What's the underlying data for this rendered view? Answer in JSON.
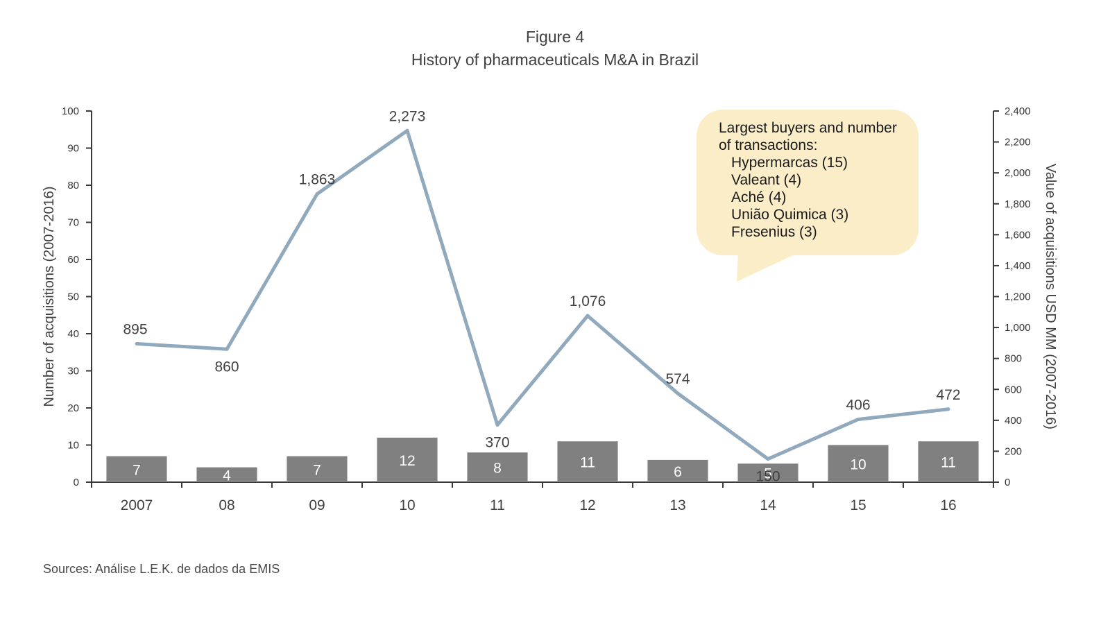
{
  "header": {
    "figure_label": "Figure 4",
    "title": "History of pharmaceuticals M&A in Brazil"
  },
  "callout": {
    "heading_line1": "Largest buyers and number",
    "heading_line2": "of transactions:",
    "buyers": [
      "Hypermarcas (15)",
      "Valeant (4)",
      "Aché  (4)",
      "União Quimica (3)",
      "Fresenius (3)"
    ]
  },
  "footer": {
    "source": "Sources: Análise  L.E.K. de dados da EMIS"
  },
  "chart_data": {
    "type": "bar",
    "categories": [
      "2007",
      "08",
      "09",
      "10",
      "11",
      "12",
      "13",
      "14",
      "15",
      "16"
    ],
    "series": [
      {
        "values": [
          7,
          4,
          7,
          12,
          8,
          11,
          6,
          5,
          10,
          11
        ],
        "axis": "left",
        "kind": "bar",
        "color": "#808080"
      },
      {
        "values": [
          895,
          860,
          1863,
          2273,
          370,
          1076,
          574,
          150,
          406,
          472
        ],
        "axis": "right",
        "kind": "line",
        "color": "#91a9bd"
      }
    ],
    "value_labels_line": [
      "895",
      "860",
      "1,863",
      "2,273",
      "370",
      "1,076",
      "574",
      "150",
      "406",
      "472"
    ],
    "ylabel": "Number of acquisitions (2007-2016)",
    "ylabel_right": "Value of acquisitions USD MM (2007-2016)",
    "ylim": [
      0,
      100
    ],
    "yticks": [
      0,
      10,
      20,
      30,
      40,
      50,
      60,
      70,
      80,
      90,
      100
    ],
    "ylim_right": [
      0,
      2400
    ],
    "yticks_right": [
      "0",
      "200",
      "400",
      "600",
      "800",
      "1,000",
      "1,200",
      "1,400",
      "1,600",
      "1,800",
      "2,000",
      "2,200",
      "2,400"
    ],
    "colors": {
      "bar": "#808080",
      "line": "#91a9bd",
      "callout": "#fbedc8",
      "axis": "#3a3a3a"
    }
  }
}
